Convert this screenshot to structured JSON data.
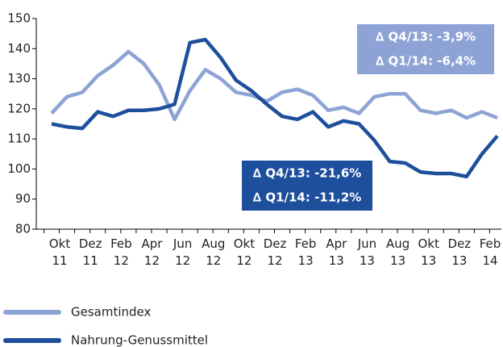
{
  "chart_data": {
    "type": "line",
    "categories": [
      null,
      "Okt 11",
      null,
      "Dez 11",
      null,
      "Feb 12",
      null,
      "Apr 12",
      null,
      "Jun 12",
      null,
      "Aug 12",
      null,
      "Okt 12",
      null,
      "Dez 12",
      null,
      "Feb 13",
      null,
      "Apr 13",
      null,
      "Jun 13",
      null,
      "Aug 13",
      null,
      "Okt 13",
      null,
      "Dez 13",
      null,
      "Feb 14"
    ],
    "series": [
      {
        "name": "Gesamtindex",
        "color": "#8ea3d5",
        "values": [
          118.5,
          124,
          125.5,
          131,
          134.5,
          139,
          135,
          128,
          116.5,
          126,
          133,
          130,
          125.5,
          124.5,
          122.5,
          125.5,
          126.5,
          124.5,
          119.5,
          120.5,
          118.5,
          124,
          125,
          125,
          119.5,
          118.5,
          119.5,
          117,
          119,
          117
        ]
      },
      {
        "name": "Nahrung-Genussmittel",
        "color": "#1e4f9c",
        "values": [
          115,
          114,
          113.5,
          119,
          117.5,
          119.5,
          119.5,
          120,
          121.5,
          142,
          143,
          137,
          129.5,
          126,
          121.5,
          117.5,
          116.5,
          119,
          114,
          116,
          115,
          109.5,
          102.5,
          102,
          99,
          98.5,
          98.5,
          97.5,
          105,
          111
        ]
      }
    ],
    "ylim": [
      80,
      150
    ],
    "yticks": [
      80,
      90,
      100,
      110,
      120,
      130,
      140,
      150
    ],
    "annotations": [
      {
        "lines": [
          "∆ Q4/13: -3,9%",
          "∆ Q1/14: -6,4%"
        ],
        "color": "#8ea3d5"
      },
      {
        "lines": [
          "∆ Q4/13: -21,6%",
          "∆ Q1/14: -11,2%"
        ],
        "color": "#1e4f9c"
      }
    ]
  }
}
